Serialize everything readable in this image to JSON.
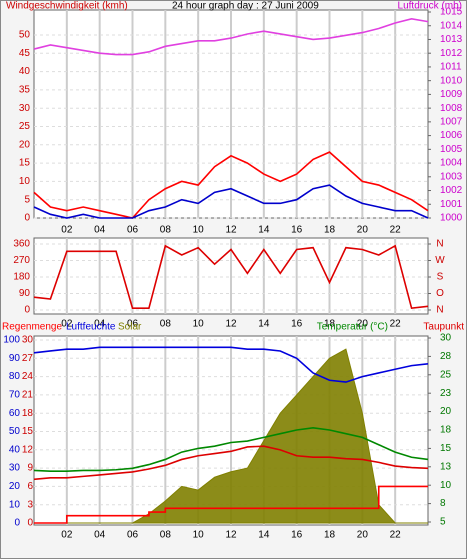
{
  "chart_data": [
    {
      "type": "line",
      "title": "24 hour graph day : 27 Juni 2009",
      "y_label": "Windgeschwindigkeit (kmh)",
      "y2_label": "Luftdruck (mb)",
      "x": [
        0,
        1,
        2,
        3,
        4,
        5,
        6,
        7,
        8,
        9,
        10,
        11,
        12,
        13,
        14,
        15,
        16,
        17,
        18,
        19,
        20,
        21,
        22,
        23,
        24
      ],
      "xlim": [
        0,
        24
      ],
      "xticks": [
        {
          "value": 2,
          "label": "02"
        },
        {
          "value": 4,
          "label": "04"
        },
        {
          "value": 6,
          "label": "06"
        },
        {
          "value": 8,
          "label": "08"
        },
        {
          "value": 10,
          "label": "10"
        },
        {
          "value": 12,
          "label": "12"
        },
        {
          "value": 14,
          "label": "14"
        },
        {
          "value": 16,
          "label": "16"
        },
        {
          "value": 18,
          "label": "18"
        },
        {
          "value": 20,
          "label": "20"
        },
        {
          "value": 22,
          "label": "22"
        }
      ],
      "ylim": [
        0,
        50
      ],
      "yticks": [
        0,
        5,
        10,
        15,
        20,
        25,
        30,
        35,
        40,
        45,
        50
      ],
      "ytick_color": "#cc0000",
      "y2lim": [
        1000,
        1015
      ],
      "y2ticks": [
        1000,
        1001,
        1002,
        1003,
        1004,
        1005,
        1006,
        1007,
        1008,
        1009,
        1010,
        1011,
        1012,
        1013,
        1014,
        1015
      ],
      "y2tick_color": "#cc00cc",
      "grid": true,
      "series": [
        {
          "color": "#ff0000",
          "axis": "y",
          "values": [
            7,
            3,
            2,
            3,
            2,
            1,
            0,
            5,
            8,
            10,
            9,
            14,
            17,
            15,
            12,
            10,
            12,
            16,
            18,
            14,
            10,
            9,
            7,
            5,
            2
          ]
        },
        {
          "color": "#0000cc",
          "axis": "y",
          "values": [
            3,
            1,
            0,
            1,
            0,
            0,
            0,
            2,
            3,
            5,
            4,
            7,
            8,
            6,
            4,
            4,
            5,
            8,
            9,
            6,
            4,
            3,
            2,
            2,
            0
          ]
        },
        {
          "color": "#e040e0",
          "axis": "y2",
          "values": [
            1012.3,
            1012.6,
            1012.4,
            1012.2,
            1012.0,
            1011.9,
            1011.9,
            1012.1,
            1012.5,
            1012.7,
            1012.9,
            1012.9,
            1013.1,
            1013.4,
            1013.6,
            1013.4,
            1013.2,
            1013.0,
            1013.1,
            1013.3,
            1013.5,
            1013.8,
            1014.2,
            1014.5,
            1014.3
          ]
        }
      ]
    },
    {
      "type": "line",
      "x": [
        0,
        1,
        2,
        3,
        4,
        5,
        6,
        7,
        8,
        9,
        10,
        11,
        12,
        13,
        14,
        15,
        16,
        17,
        18,
        19,
        20,
        21,
        22,
        23,
        24
      ],
      "xlim": [
        0,
        24
      ],
      "xticks": [
        {
          "value": 2,
          "label": "02"
        },
        {
          "value": 4,
          "label": "04"
        },
        {
          "value": 6,
          "label": "06"
        },
        {
          "value": 8,
          "label": "08"
        },
        {
          "value": 10,
          "label": "10"
        },
        {
          "value": 12,
          "label": "12"
        },
        {
          "value": 14,
          "label": "14"
        },
        {
          "value": 16,
          "label": "16"
        },
        {
          "value": 18,
          "label": "18"
        },
        {
          "value": 20,
          "label": "20"
        },
        {
          "value": 22,
          "label": "22"
        }
      ],
      "ylim": [
        0,
        360
      ],
      "yticks": [
        0,
        90,
        180,
        270,
        360
      ],
      "ytick_color": "#cc0000",
      "y2lim": [
        0,
        360
      ],
      "y2ticks": [
        {
          "value": 0,
          "label": "N"
        },
        {
          "value": 90,
          "label": "O"
        },
        {
          "value": 180,
          "label": "S"
        },
        {
          "value": 270,
          "label": "W"
        },
        {
          "value": 360,
          "label": "N"
        }
      ],
      "y2tick_color": "#cc0000",
      "grid": true,
      "series": [
        {
          "color": "#dd0000",
          "axis": "y",
          "values": [
            70,
            60,
            320,
            320,
            320,
            320,
            10,
            10,
            350,
            300,
            340,
            250,
            330,
            200,
            330,
            200,
            330,
            340,
            150,
            340,
            330,
            300,
            350,
            10,
            20
          ]
        }
      ]
    },
    {
      "type": "line",
      "x": [
        0,
        1,
        2,
        3,
        4,
        5,
        6,
        7,
        8,
        9,
        10,
        11,
        12,
        13,
        14,
        15,
        16,
        17,
        18,
        19,
        20,
        21,
        22,
        23,
        24
      ],
      "xlim": [
        0,
        24
      ],
      "xticks": [
        {
          "value": 2,
          "label": "02"
        },
        {
          "value": 4,
          "label": "04"
        },
        {
          "value": 6,
          "label": "06"
        },
        {
          "value": 8,
          "label": "08"
        },
        {
          "value": 10,
          "label": "10"
        },
        {
          "value": 12,
          "label": "12"
        },
        {
          "value": 14,
          "label": "14"
        },
        {
          "value": 16,
          "label": "16"
        },
        {
          "value": 18,
          "label": "18"
        },
        {
          "value": 20,
          "label": "20"
        },
        {
          "value": 22,
          "label": "22"
        }
      ],
      "ylim": [
        0,
        100
      ],
      "yticks": [
        0,
        10,
        20,
        30,
        40,
        50,
        60,
        70,
        80,
        90,
        100
      ],
      "ytick_color": "#0000cc",
      "y3lim": [
        0,
        30
      ],
      "y3ticks": [
        0,
        3,
        6,
        9,
        12,
        15,
        18,
        21,
        24,
        27,
        30
      ],
      "y3tick_color": "#cc0000",
      "y2lim": [
        5,
        30
      ],
      "y2ticks": [
        {
          "value": 5,
          "label": "5"
        },
        {
          "value": 7.5,
          "label": "8"
        },
        {
          "value": 10,
          "label": "10"
        },
        {
          "value": 12.5,
          "label": "13"
        },
        {
          "value": 15,
          "label": "15"
        },
        {
          "value": 17.5,
          "label": "18"
        },
        {
          "value": 20,
          "label": "20"
        },
        {
          "value": 22.5,
          "label": "23"
        },
        {
          "value": 25,
          "label": "25"
        },
        {
          "value": 27.5,
          "label": "28"
        },
        {
          "value": 30,
          "label": "30"
        }
      ],
      "y2tick_color": "#007700",
      "grid": true,
      "series": [
        {
          "name": "Solar",
          "color": "#808000",
          "axis": "y",
          "style": "area",
          "values": [
            0,
            0,
            0,
            0,
            0,
            0,
            0,
            5,
            12,
            20,
            18,
            25,
            28,
            30,
            45,
            60,
            70,
            80,
            90,
            95,
            60,
            10,
            0,
            0,
            0
          ]
        },
        {
          "name": "Regenmenge",
          "color": "#ff0000",
          "axis": "y3",
          "style": "step",
          "values": [
            0,
            0,
            1.2,
            1.2,
            1.2,
            1.2,
            1.2,
            1.8,
            2.4,
            2.4,
            2.4,
            2.4,
            2.4,
            2.4,
            2.4,
            2.4,
            2.4,
            2.4,
            2.4,
            2.4,
            2.4,
            6,
            6,
            6,
            6
          ]
        },
        {
          "name": "Luftfeuchte",
          "color": "#0000dd",
          "axis": "y",
          "values": [
            93,
            94,
            95,
            95,
            96,
            96,
            96,
            96,
            96,
            96,
            96,
            96,
            96,
            95,
            95,
            94,
            90,
            82,
            78,
            77,
            80,
            82,
            84,
            86,
            87
          ]
        },
        {
          "name": "Temperatur (°C)",
          "color": "#008800",
          "axis": "y2",
          "values": [
            12,
            11.9,
            11.9,
            12,
            12,
            12.1,
            12.3,
            12.8,
            13.5,
            14.5,
            15,
            15.3,
            15.8,
            16,
            16.5,
            17,
            17.5,
            17.8,
            17.5,
            17,
            16.5,
            15.5,
            14.5,
            13.8,
            13.5
          ]
        },
        {
          "name": "Taupunkt",
          "color": "#dd0000",
          "axis": "y2",
          "values": [
            10.8,
            11,
            11,
            11.2,
            11.4,
            11.6,
            11.8,
            12.2,
            12.7,
            13.5,
            14,
            14.3,
            14.6,
            15.2,
            15.3,
            14.8,
            14,
            13.8,
            13.8,
            13.6,
            13.5,
            13.1,
            12.6,
            12.4,
            12.3
          ]
        }
      ]
    }
  ]
}
